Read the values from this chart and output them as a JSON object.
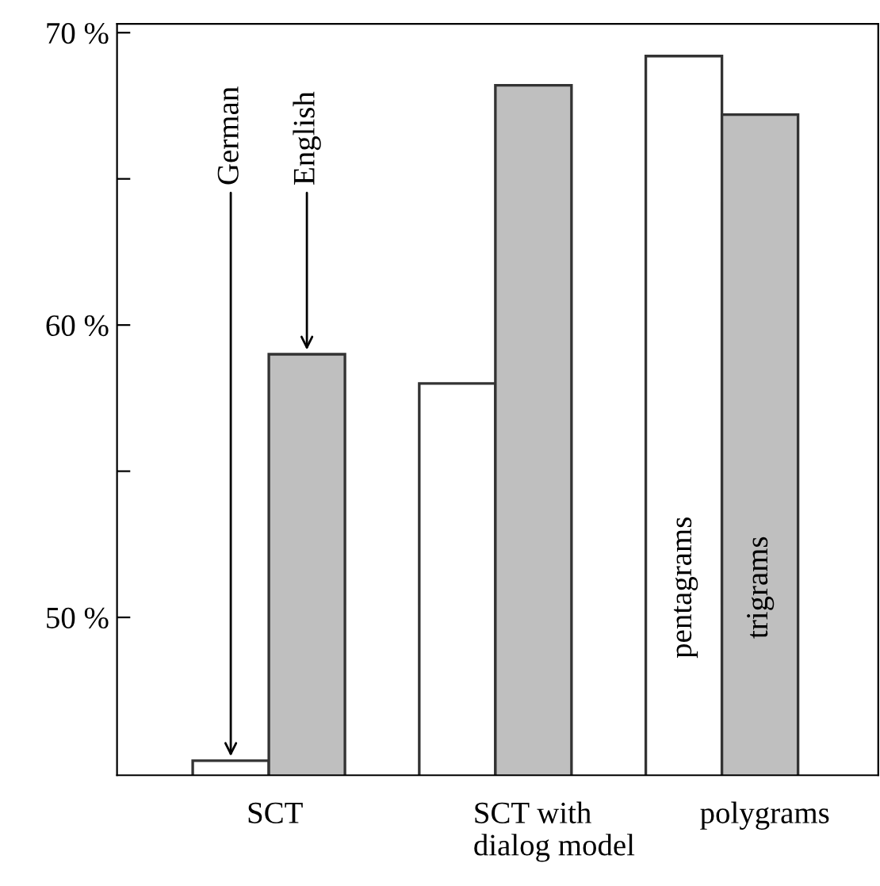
{
  "chart_data": {
    "type": "bar",
    "categories": [
      "SCT",
      "SCT with\ndialog model",
      "polygrams"
    ],
    "series": [
      {
        "color": "#ffffff",
        "values": [
          45.1,
          58.0,
          69.2
        ]
      },
      {
        "color": "#bfbfbf",
        "values": [
          59.0,
          68.2,
          67.2
        ]
      }
    ],
    "ylim": [
      44.6,
      70.3
    ],
    "yticks": [
      {
        "value": 50,
        "label": "50 %"
      },
      {
        "value": 55,
        "label": null
      },
      {
        "value": 60,
        "label": "60 %"
      },
      {
        "value": 65,
        "label": null
      },
      {
        "value": 70,
        "label": "70 %"
      }
    ],
    "annotations": [
      "German",
      "English",
      "pentagrams",
      "trigrams"
    ],
    "grid": false,
    "legend": false
  }
}
